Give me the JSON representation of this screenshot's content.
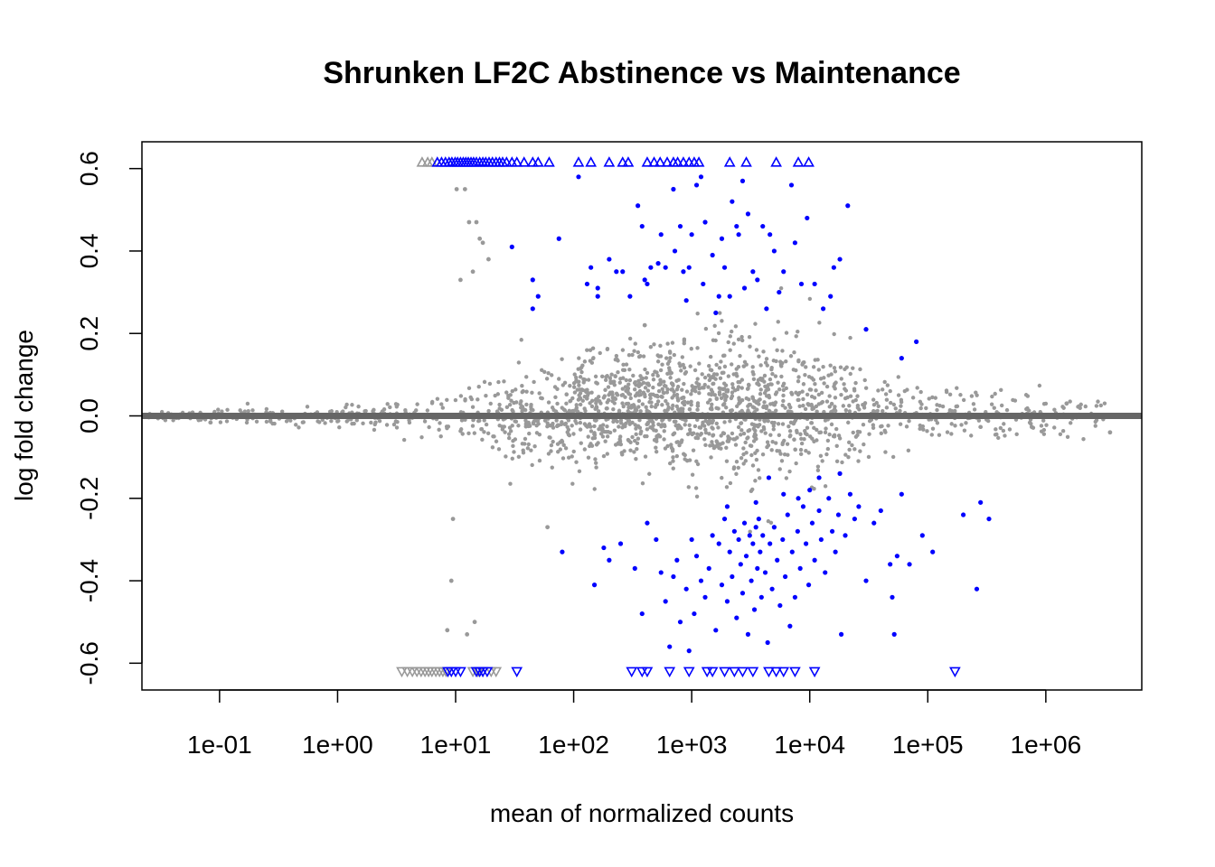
{
  "chart_data": {
    "type": "scatter",
    "title": "Shrunken LF2C Abstinence vs Maintenance",
    "xlabel": "mean of normalized counts",
    "ylabel": "log fold change",
    "x_scale": "log10",
    "xlim": [
      0.022,
      6500000
    ],
    "ylim": [
      -0.665,
      0.665
    ],
    "x_ticks": [
      {
        "value": 0.1,
        "label": "1e-01"
      },
      {
        "value": 1,
        "label": "1e+00"
      },
      {
        "value": 10,
        "label": "1e+01"
      },
      {
        "value": 100,
        "label": "1e+02"
      },
      {
        "value": 1000,
        "label": "1e+03"
      },
      {
        "value": 10000,
        "label": "1e+04"
      },
      {
        "value": 100000,
        "label": "1e+05"
      },
      {
        "value": 1000000,
        "label": "1e+06"
      }
    ],
    "y_ticks": [
      {
        "value": -0.6,
        "label": "-0.6"
      },
      {
        "value": -0.4,
        "label": "-0.4"
      },
      {
        "value": -0.2,
        "label": "-0.2"
      },
      {
        "value": 0.0,
        "label": "0.0"
      },
      {
        "value": 0.2,
        "label": "0.2"
      },
      {
        "value": 0.4,
        "label": "0.4"
      },
      {
        "value": 0.6,
        "label": "0.6"
      }
    ],
    "reference_line": {
      "y": 0,
      "color": "#666666"
    },
    "colors": {
      "non_significant": "#999999",
      "significant": "#0000ff"
    },
    "significant_points": [
      [
        30,
        0.41
      ],
      [
        50,
        0.29
      ],
      [
        45,
        0.26
      ],
      [
        45,
        0.33
      ],
      [
        75,
        0.43
      ],
      [
        110,
        0.58
      ],
      [
        130,
        0.32
      ],
      [
        140,
        0.36
      ],
      [
        160,
        0.31
      ],
      [
        160,
        0.29
      ],
      [
        200,
        0.38
      ],
      [
        230,
        0.35
      ],
      [
        260,
        0.35
      ],
      [
        300,
        0.29
      ],
      [
        350,
        0.51
      ],
      [
        380,
        0.46
      ],
      [
        400,
        0.33
      ],
      [
        420,
        0.32
      ],
      [
        450,
        0.36
      ],
      [
        520,
        0.37
      ],
      [
        550,
        0.44
      ],
      [
        600,
        0.36
      ],
      [
        700,
        0.55
      ],
      [
        720,
        0.4
      ],
      [
        800,
        0.46
      ],
      [
        850,
        0.35
      ],
      [
        900,
        0.28
      ],
      [
        950,
        0.36
      ],
      [
        1000,
        0.44
      ],
      [
        1100,
        0.56
      ],
      [
        1200,
        0.58
      ],
      [
        1250,
        0.32
      ],
      [
        1300,
        0.47
      ],
      [
        1500,
        0.39
      ],
      [
        1600,
        0.25
      ],
      [
        1700,
        0.29
      ],
      [
        1800,
        0.43
      ],
      [
        1900,
        0.36
      ],
      [
        2100,
        0.29
      ],
      [
        2200,
        0.52
      ],
      [
        2400,
        0.46
      ],
      [
        2500,
        0.44
      ],
      [
        2700,
        0.57
      ],
      [
        2800,
        0.31
      ],
      [
        3000,
        0.49
      ],
      [
        3300,
        0.35
      ],
      [
        3600,
        0.33
      ],
      [
        4000,
        0.46
      ],
      [
        4300,
        0.26
      ],
      [
        4600,
        0.44
      ],
      [
        5000,
        0.4
      ],
      [
        5500,
        0.3
      ],
      [
        6000,
        0.35
      ],
      [
        7000,
        0.56
      ],
      [
        7500,
        0.42
      ],
      [
        8500,
        0.32
      ],
      [
        9500,
        0.48
      ],
      [
        11000,
        0.32
      ],
      [
        13000,
        0.26
      ],
      [
        15000,
        0.29
      ],
      [
        18000,
        0.38
      ],
      [
        21000,
        0.51
      ],
      [
        16000,
        0.36
      ],
      [
        30000,
        0.21
      ],
      [
        80000,
        0.18
      ],
      [
        60000,
        0.14
      ],
      [
        80,
        -0.33
      ],
      [
        150,
        -0.41
      ],
      [
        180,
        -0.32
      ],
      [
        200,
        -0.35
      ],
      [
        250,
        -0.31
      ],
      [
        330,
        -0.37
      ],
      [
        380,
        -0.48
      ],
      [
        420,
        -0.26
      ],
      [
        500,
        -0.3
      ],
      [
        550,
        -0.38
      ],
      [
        600,
        -0.45
      ],
      [
        650,
        -0.56
      ],
      [
        700,
        -0.39
      ],
      [
        750,
        -0.35
      ],
      [
        800,
        -0.5
      ],
      [
        900,
        -0.42
      ],
      [
        950,
        -0.57
      ],
      [
        1000,
        -0.3
      ],
      [
        1050,
        -0.48
      ],
      [
        1100,
        -0.34
      ],
      [
        1200,
        -0.4
      ],
      [
        1300,
        -0.44
      ],
      [
        1400,
        -0.37
      ],
      [
        1500,
        -0.29
      ],
      [
        1600,
        -0.52
      ],
      [
        1700,
        -0.31
      ],
      [
        1800,
        -0.41
      ],
      [
        1900,
        -0.25
      ],
      [
        2000,
        -0.45
      ],
      [
        2100,
        -0.33
      ],
      [
        2200,
        -0.39
      ],
      [
        2300,
        -0.28
      ],
      [
        2400,
        -0.49
      ],
      [
        2500,
        -0.3
      ],
      [
        2600,
        -0.36
      ],
      [
        2700,
        -0.43
      ],
      [
        2800,
        -0.26
      ],
      [
        2900,
        -0.34
      ],
      [
        3000,
        -0.53
      ],
      [
        3100,
        -0.29
      ],
      [
        3200,
        -0.4
      ],
      [
        3300,
        -0.31
      ],
      [
        3400,
        -0.47
      ],
      [
        3500,
        -0.27
      ],
      [
        3600,
        -0.37
      ],
      [
        3700,
        -0.25
      ],
      [
        3800,
        -0.33
      ],
      [
        3900,
        -0.44
      ],
      [
        4000,
        -0.29
      ],
      [
        4200,
        -0.38
      ],
      [
        4400,
        -0.55
      ],
      [
        4600,
        -0.31
      ],
      [
        4800,
        -0.42
      ],
      [
        5000,
        -0.27
      ],
      [
        5300,
        -0.35
      ],
      [
        5600,
        -0.46
      ],
      [
        5900,
        -0.3
      ],
      [
        6200,
        -0.39
      ],
      [
        6500,
        -0.24
      ],
      [
        6800,
        -0.51
      ],
      [
        7100,
        -0.33
      ],
      [
        7500,
        -0.44
      ],
      [
        7900,
        -0.28
      ],
      [
        8300,
        -0.37
      ],
      [
        8800,
        -0.22
      ],
      [
        9300,
        -0.31
      ],
      [
        9800,
        -0.41
      ],
      [
        10500,
        -0.26
      ],
      [
        11000,
        -0.35
      ],
      [
        12000,
        -0.23
      ],
      [
        12500,
        -0.3
      ],
      [
        13500,
        -0.38
      ],
      [
        14500,
        -0.2
      ],
      [
        15500,
        -0.28
      ],
      [
        16500,
        -0.33
      ],
      [
        17500,
        -0.24
      ],
      [
        18500,
        -0.53
      ],
      [
        20000,
        -0.29
      ],
      [
        22000,
        -0.19
      ],
      [
        24000,
        -0.25
      ],
      [
        26000,
        -0.22
      ],
      [
        30000,
        -0.4
      ],
      [
        35000,
        -0.26
      ],
      [
        40000,
        -0.23
      ],
      [
        48000,
        -0.36
      ],
      [
        50000,
        -0.44
      ],
      [
        52000,
        -0.53
      ],
      [
        55000,
        -0.34
      ],
      [
        60000,
        -0.19
      ],
      [
        70000,
        -0.36
      ],
      [
        90000,
        -0.29
      ],
      [
        110000,
        -0.33
      ],
      [
        200000,
        -0.24
      ],
      [
        260000,
        -0.42
      ],
      [
        280000,
        -0.21
      ],
      [
        330000,
        -0.25
      ],
      [
        10000,
        -0.18
      ],
      [
        8000,
        -0.2
      ],
      [
        6000,
        -0.19
      ],
      [
        3500,
        -0.21
      ],
      [
        2000,
        -0.22
      ],
      [
        4500,
        -0.15
      ],
      [
        12000,
        -0.15
      ],
      [
        18000,
        -0.14
      ]
    ],
    "clipped_triangles_up": {
      "y": 0.615,
      "gray_x": [
        5.2,
        5.8,
        6.3
      ],
      "blue_x": [
        7.0,
        7.6,
        8.2,
        8.8,
        9.3,
        9.9,
        10.4,
        11.0,
        11.6,
        12.2,
        12.8,
        13.5,
        14.2,
        15.0,
        16.0,
        17.0,
        18.0,
        19.2,
        20.5,
        22.0,
        23.5,
        25.0,
        27.0,
        30.0,
        33.0,
        38.0,
        45.0,
        50.0,
        62.0,
        110.0,
        140.0,
        200.0,
        260.0,
        290.0,
        420.0,
        480.0,
        540.0,
        620.0,
        700.0,
        760.0,
        850.0,
        950.0,
        1050.0,
        1150.0,
        2100.0,
        2900.0,
        5200.0,
        8000.0,
        9800.0
      ]
    },
    "clipped_triangles_down": {
      "y": -0.62,
      "gray_x": [
        3.5,
        3.9,
        4.3,
        4.7,
        5.1,
        5.5,
        5.9,
        6.3,
        6.8,
        7.3,
        7.8,
        8.3,
        14.0,
        15.5,
        17.0,
        20.0,
        22.0
      ],
      "blue_x": [
        8.6,
        9.2,
        10.0,
        11.0,
        15.0,
        16.0,
        17.0,
        18.5,
        33.0,
        310.0,
        380.0,
        420.0,
        650.0,
        950.0,
        1350.0,
        1500.0,
        1900.0,
        2300.0,
        2700.0,
        3300.0,
        4500.0,
        5200.0,
        6000.0,
        7500.0,
        11000.0,
        170000.0
      ]
    }
  }
}
